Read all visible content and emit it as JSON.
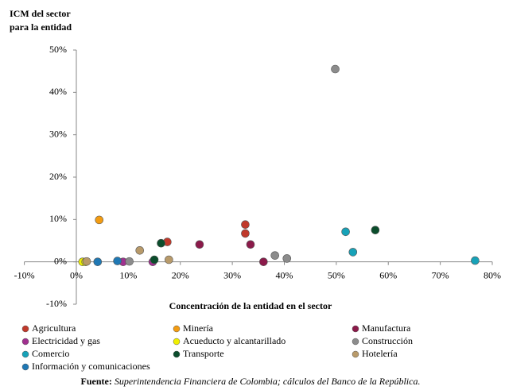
{
  "chart_data": {
    "type": "scatter",
    "ylabel": [
      "ICM del sector",
      "para la entidad"
    ],
    "xlabel": "Concentración de la entidad en el sector",
    "source_label": "Fuente:",
    "source_text": "Superintendencia Financiera de Colombia; cálculos del Banco de la República.",
    "xlim": [
      -10,
      80
    ],
    "xticks": [
      {
        "value": -10,
        "label": "-10%"
      },
      {
        "value": 0,
        "label": "0%"
      },
      {
        "value": 10,
        "label": "10%"
      },
      {
        "value": 20,
        "label": "20%"
      },
      {
        "value": 30,
        "label": "30%"
      },
      {
        "value": 40,
        "label": "40%"
      },
      {
        "value": 50,
        "label": "50%"
      },
      {
        "value": 60,
        "label": "60%"
      },
      {
        "value": 70,
        "label": "70%"
      },
      {
        "value": 80,
        "label": "80%"
      }
    ],
    "ylim": [
      -10,
      50
    ],
    "yticks": [
      {
        "value": -10,
        "label": "-10%"
      },
      {
        "value": 0,
        "label": "0%"
      },
      {
        "value": 10,
        "label": "10%"
      },
      {
        "value": 20,
        "label": "20%"
      },
      {
        "value": 30,
        "label": "30%"
      },
      {
        "value": 40,
        "label": "40%"
      },
      {
        "value": 50,
        "label": "50%"
      }
    ],
    "series": [
      {
        "name": "Agricultura",
        "color": "#c0392b",
        "x": [
          17.5,
          32.5,
          32.5
        ],
        "y": [
          4.7,
          8.8,
          6.7
        ]
      },
      {
        "name": "Minería",
        "color": "#f39c12",
        "x": [
          4.4
        ],
        "y": [
          9.9
        ]
      },
      {
        "name": "Manufactura",
        "color": "#8b1a4a",
        "x": [
          23.7,
          33.5,
          36
        ],
        "y": [
          4.1,
          4.1,
          0
        ]
      },
      {
        "name": "Electricidad y gas",
        "color": "#a0308f",
        "x": [
          14.7,
          9
        ],
        "y": [
          0,
          0
        ]
      },
      {
        "name": "Acueducto y alcantarillado",
        "color": "#f0f000",
        "x": [
          1.2,
          1.8
        ],
        "y": [
          0,
          0
        ]
      },
      {
        "name": "Construcción",
        "color": "#8c8c8c",
        "x": [
          49.8,
          38.2,
          40.5,
          10.2
        ],
        "y": [
          45.5,
          1.5,
          0.8,
          0.1
        ]
      },
      {
        "name": "Comercio",
        "color": "#17a2b8",
        "x": [
          51.8,
          53.2,
          76.7
        ],
        "y": [
          7.1,
          2.3,
          0.3
        ]
      },
      {
        "name": "Transporte",
        "color": "#0b4d2c",
        "x": [
          16.3,
          57.5,
          15
        ],
        "y": [
          4.4,
          7.5,
          0.5
        ]
      },
      {
        "name": "Hotelería",
        "color": "#b89a6a",
        "x": [
          12.2,
          17.8,
          2
        ],
        "y": [
          2.7,
          0.5,
          0.1
        ]
      },
      {
        "name": "Información y comunicaciones",
        "color": "#1f78b4",
        "x": [
          4.1,
          7.9
        ],
        "y": [
          0,
          0.2
        ]
      }
    ]
  }
}
